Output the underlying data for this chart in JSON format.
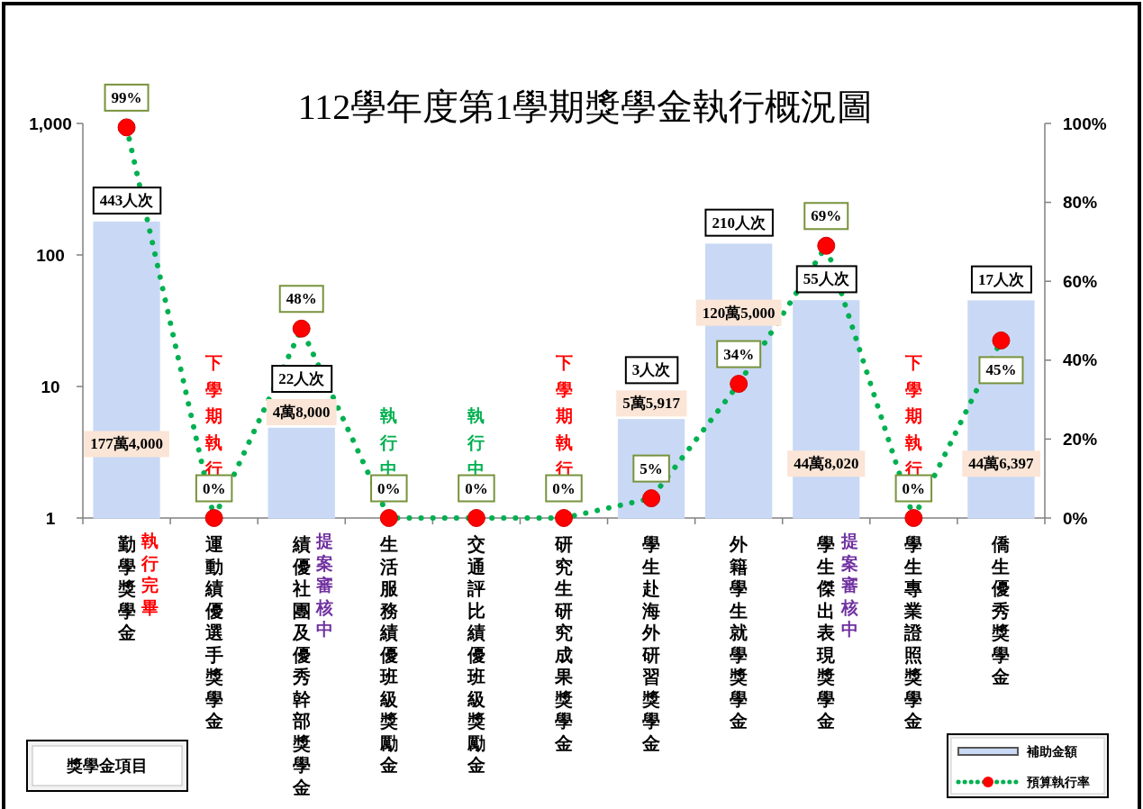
{
  "chart_data": {
    "type": "bar",
    "title": "112學年度第1學期獎學金執行概況圖",
    "xlabel": "獎學金項目",
    "categories": [
      "勤學獎學金",
      "運動績優選手獎學金",
      "績優社團及優秀幹部獎學金",
      "生活服務績優班級獎勵金",
      "交通評比績優班級獎勵金",
      "研究生研究成果獎學金",
      "學生赴海外研習獎學金",
      "外籍學生就學獎學金",
      "學生傑出表現獎學金",
      "學生專業證照獎學金",
      "僑生優秀獎學金"
    ],
    "series": [
      {
        "name": "補助金額",
        "color": "#c9d9f5",
        "values": [
          177.4,
          null,
          4.8,
          null,
          null,
          null,
          5.5917,
          120.5,
          44.802,
          null,
          44.6397
        ]
      },
      {
        "name": "預算執行率",
        "type": "line",
        "axis": "y2",
        "color": "#00b050",
        "marker": "circle",
        "line_style": "dotted",
        "values": [
          99,
          0,
          48,
          0,
          0,
          0,
          5,
          34,
          69,
          0,
          45
        ],
        "value_labels": [
          "99%",
          "0%",
          "48%",
          "0%",
          "0%",
          "0%",
          "5%",
          "34%",
          "69%",
          "0%",
          "45%"
        ]
      }
    ],
    "log": "y",
    "ylim": [
      1,
      1000
    ],
    "yticks": [
      1,
      10,
      100,
      {
        "value": 1000,
        "label": "1,000"
      }
    ],
    "y2lim": [
      0,
      100
    ],
    "y2ticks": [
      {
        "value": 0,
        "label": "0%"
      },
      {
        "value": 20,
        "label": "20%"
      },
      {
        "value": 40,
        "label": "40%"
      },
      {
        "value": 60,
        "label": "60%"
      },
      {
        "value": 80,
        "label": "80%"
      },
      {
        "value": 100,
        "label": "100%"
      }
    ],
    "grid": false,
    "legend": "bottom right",
    "annotations": [
      {
        "text": "443人次",
        "x": "勤學獎學金",
        "y": 177.4
      },
      {
        "text": "22人次",
        "x": "績優社團及優秀幹部獎學金",
        "y": 4.8
      },
      {
        "text": "3人次",
        "x": "學生赴海外研習獎學金",
        "y": 5.5917
      },
      {
        "text": "210人次",
        "x": "外籍學生就學獎學金",
        "y": 120.5
      },
      {
        "text": "55人次",
        "x": "學生傑出表現獎學金",
        "y": 44.802
      },
      {
        "text": "17人次",
        "x": "僑生優秀獎學金",
        "y": 44.6397
      },
      "177萬4,000",
      "4萬8,000",
      "5萬5,917",
      "120萬5,000",
      "44萬8,020",
      "44萬6,397",
      "執行完畢",
      "下學期執行",
      "提案審核中",
      "執行中",
      "執行中",
      "下學期執行",
      "提案審核中",
      "下學期執行"
    ]
  }
}
